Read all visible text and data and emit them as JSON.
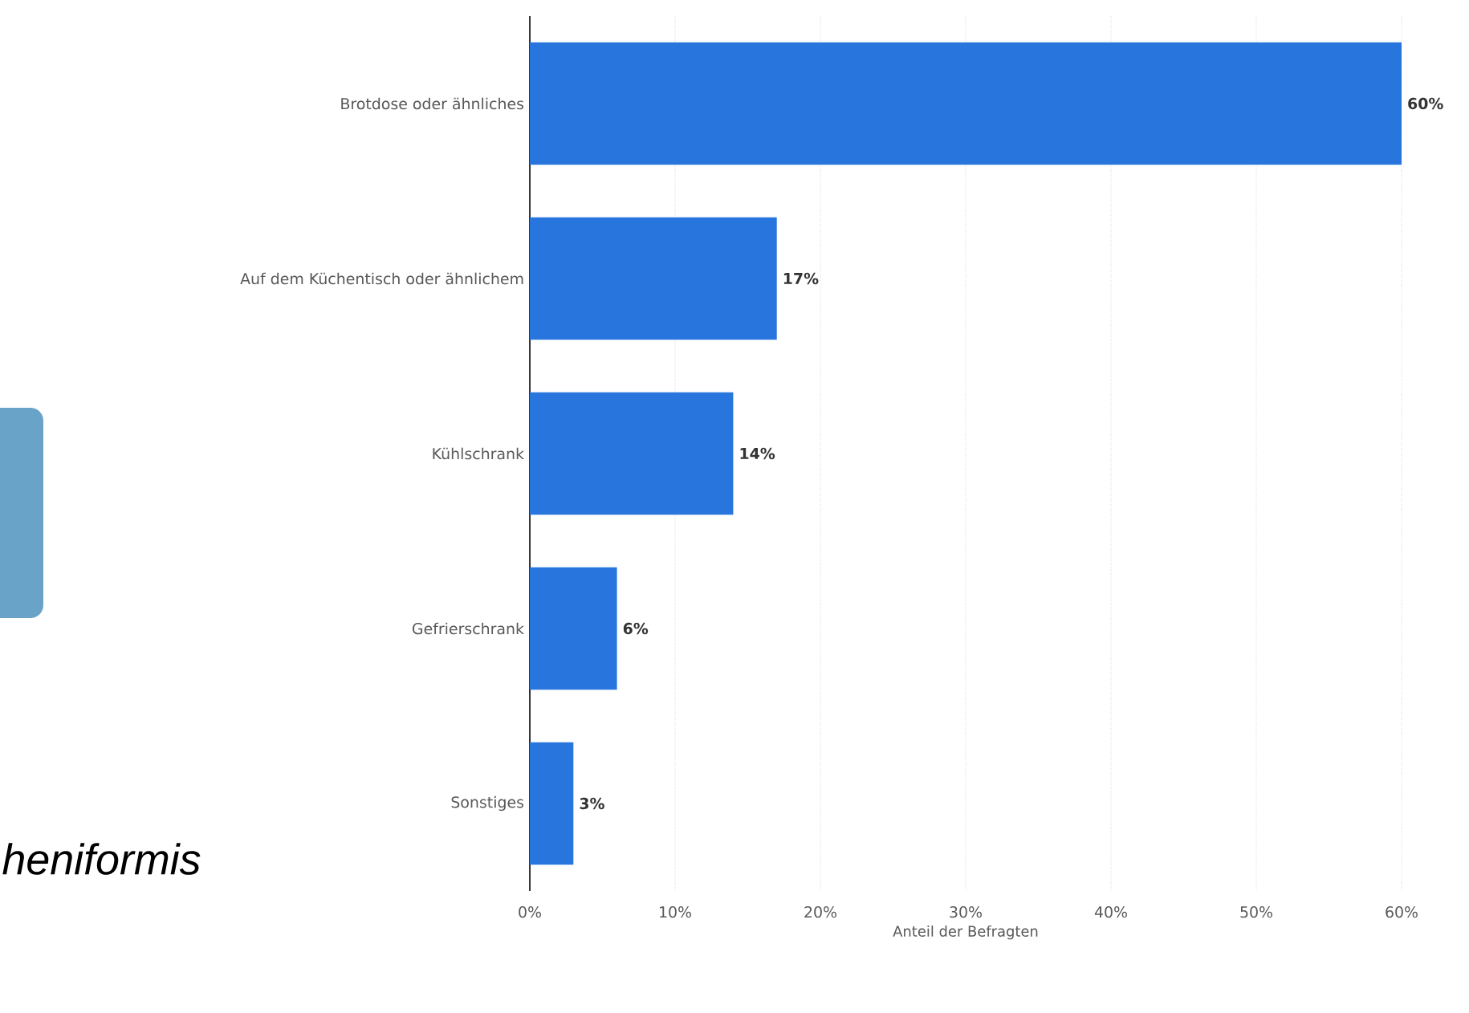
{
  "chart_data": {
    "type": "bar",
    "orientation": "horizontal",
    "categories": [
      "Brotdose oder ähnliches",
      "Auf dem Küchentisch oder ähnlichem",
      "Kühlschrank",
      "Gefrierschrank",
      "Sonstiges"
    ],
    "values": [
      60,
      17,
      14,
      6,
      3
    ],
    "value_labels": [
      "60%",
      "17%",
      "14%",
      "6%",
      "3%"
    ],
    "color": "#2876dd",
    "xlim": [
      0,
      60
    ],
    "xticks": [
      {
        "value": 0,
        "label": "0%"
      },
      {
        "value": 10,
        "label": "10%"
      },
      {
        "value": 20,
        "label": "20%"
      },
      {
        "value": 30,
        "label": "30%"
      },
      {
        "value": 40,
        "label": "40%"
      },
      {
        "value": 50,
        "label": "50%"
      },
      {
        "value": 60,
        "label": "60%"
      }
    ],
    "grid": "x",
    "xlabel": "Anteil der Befragten",
    "annotations": [
      "heniformis"
    ]
  }
}
